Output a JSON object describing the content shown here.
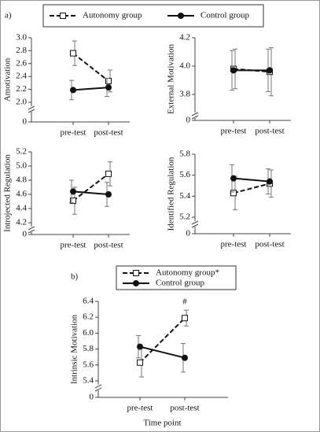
{
  "chart_data": [
    {
      "type": "line",
      "panel_label": "a)",
      "y_label": "Amotivation",
      "categories": [
        "pre-test",
        "post-test"
      ],
      "axis_break": true,
      "ylim": [
        2.0,
        3.0
      ],
      "yticks": [
        0,
        {
          "value": 2.0,
          "label": "2.0"
        },
        2.2,
        2.4,
        2.6,
        2.8,
        {
          "value": 3.0,
          "label": "3.0"
        }
      ],
      "series": [
        {
          "name": "Autonomy group",
          "color": "#111",
          "linestyle": "dashed",
          "marker": "square-open",
          "values": [
            2.76,
            2.33
          ],
          "errors": [
            0.19,
            0.17
          ]
        },
        {
          "name": "Control group",
          "color": "#111",
          "linestyle": "solid",
          "marker": "circle",
          "values": [
            2.19,
            2.23
          ],
          "errors": [
            0.15,
            0.14
          ]
        }
      ]
    },
    {
      "type": "line",
      "y_label": "External Motivation",
      "categories": [
        "pre-test",
        "post-test"
      ],
      "axis_break": true,
      "ylim": [
        3.7,
        4.2
      ],
      "yticks": [
        0,
        3.8,
        {
          "value": 4.0,
          "label": "4.0"
        },
        4.2
      ],
      "series": [
        {
          "name": "Autonomy group",
          "color": "#111",
          "linestyle": "dashed",
          "marker": "square-open",
          "values": [
            3.98,
            3.96
          ],
          "errors": [
            0.14,
            0.17
          ]
        },
        {
          "name": "Control group",
          "color": "#111",
          "linestyle": "solid",
          "marker": "circle",
          "values": [
            3.97,
            3.97
          ],
          "errors": [
            0.14,
            0.15
          ]
        }
      ]
    },
    {
      "type": "line",
      "y_label": "Introjected Regulation",
      "categories": [
        "pre-test",
        "post-test"
      ],
      "axis_break": true,
      "ylim": [
        4.2,
        5.2
      ],
      "yticks": [
        0,
        4.2,
        4.4,
        4.6,
        4.8,
        {
          "value": 5.0,
          "label": "5.0"
        },
        5.2
      ],
      "series": [
        {
          "name": "Autonomy group",
          "color": "#111",
          "linestyle": "dashed",
          "marker": "square-open",
          "values": [
            4.51,
            4.89
          ],
          "errors": [
            0.19,
            0.17
          ]
        },
        {
          "name": "Control group",
          "color": "#111",
          "linestyle": "solid",
          "marker": "circle",
          "values": [
            4.64,
            4.6
          ],
          "errors": [
            0.16,
            0.17
          ]
        }
      ]
    },
    {
      "type": "line",
      "y_label": "Identified Regulation",
      "categories": [
        "pre-test",
        "post-test"
      ],
      "axis_break": true,
      "ylim": [
        5.2,
        5.8
      ],
      "yticks": [
        0,
        5.2,
        5.4,
        5.6,
        5.8
      ],
      "series": [
        {
          "name": "Autonomy group",
          "color": "#111",
          "linestyle": "dashed",
          "marker": "square-open",
          "values": [
            5.43,
            5.52
          ],
          "errors": [
            0.16,
            0.13
          ]
        },
        {
          "name": "Control group",
          "color": "#111",
          "linestyle": "solid",
          "marker": "circle",
          "values": [
            5.57,
            5.54
          ],
          "errors": [
            0.13,
            0.12
          ]
        }
      ]
    },
    {
      "type": "line",
      "panel_label": "b)",
      "y_label": "Intrinsic Motivation",
      "x_label": "Time point",
      "annotation": "#",
      "categories": [
        "pre-test",
        "post-test"
      ],
      "axis_break": true,
      "ylim": [
        5.4,
        6.4
      ],
      "yticks": [
        0,
        5.4,
        5.6,
        5.8,
        {
          "value": 6.0,
          "label": "6.0"
        },
        6.2,
        6.4
      ],
      "series": [
        {
          "name": "Autonomy group*",
          "color": "#111",
          "linestyle": "dashed",
          "marker": "square-open",
          "values": [
            5.63,
            6.19
          ],
          "errors": [
            0.18,
            0.1
          ]
        },
        {
          "name": "Control group",
          "color": "#111",
          "linestyle": "solid",
          "marker": "circle",
          "values": [
            5.83,
            5.69
          ],
          "errors": [
            0.14,
            0.18
          ]
        }
      ]
    }
  ]
}
